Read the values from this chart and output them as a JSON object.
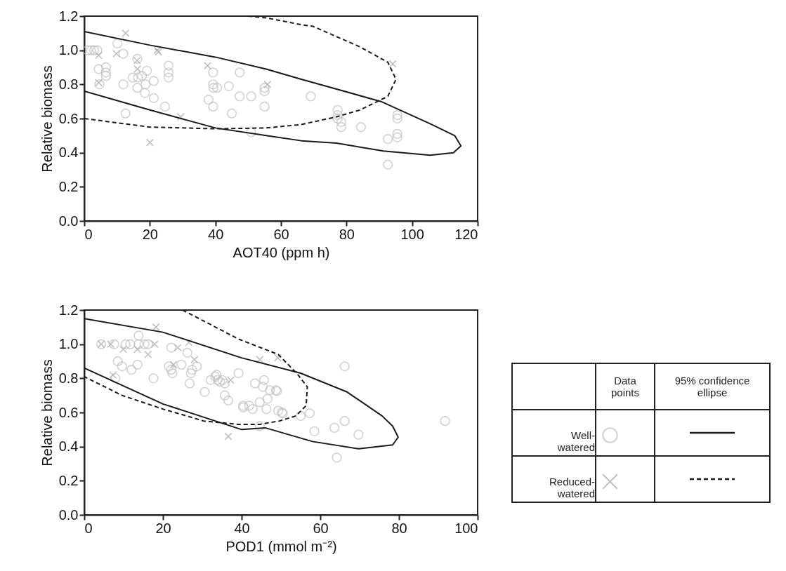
{
  "chart_data": [
    {
      "type": "scatter",
      "xlabel": "AOT40 (ppm h)",
      "ylabel": "Relative biomass",
      "xlim": [
        0,
        120
      ],
      "xticks": [
        0,
        20,
        40,
        60,
        80,
        100,
        120
      ],
      "ylim": [
        0,
        1.2
      ],
      "yticks": [
        {
          "value": 0,
          "label": "0.0"
        },
        0.2,
        0.4,
        0.6,
        0.8,
        {
          "value": 1,
          "label": "1.0"
        },
        {
          "value": 1.2,
          "label": "1.2"
        }
      ],
      "series": [
        {
          "type": "scatter",
          "marker": "circle",
          "color": "#c0c0c0",
          "x": [
            1,
            2,
            3,
            4,
            10.1,
            11.9,
            4.4,
            4.6,
            6.6,
            6.6,
            6.6,
            11.9,
            12.6,
            14.8,
            16.2,
            16.4,
            16.2,
            17.6,
            19.1,
            18.7,
            18.5,
            21.2,
            21.2,
            24.6,
            25.7,
            25.7,
            25.7,
            39.3,
            39.3,
            39.4,
            40.5,
            37.9,
            39.3,
            44.1,
            45,
            47.4,
            47.4,
            50.9,
            50.9,
            55,
            55,
            55,
            69.1,
            77.3,
            77.3,
            77.3,
            78.4,
            78.4,
            84.4,
            92.6,
            92.6,
            95.5,
            95.5,
            95.5,
            95.5
          ],
          "values": [
            1,
            1,
            1,
            1,
            1.04,
            0.98,
            0.89,
            0.8,
            0.9,
            0.87,
            0.85,
            0.8,
            0.63,
            0.84,
            0.95,
            0.84,
            0.78,
            0.85,
            0.88,
            0.8,
            0.75,
            0.82,
            0.72,
            0.67,
            0.91,
            0.87,
            0.84,
            0.87,
            0.8,
            0.78,
            0.78,
            0.71,
            0.67,
            0.79,
            0.63,
            0.87,
            0.73,
            0.73,
            0.52,
            0.78,
            0.76,
            0.67,
            0.73,
            0.65,
            0.62,
            0.6,
            0.58,
            0.55,
            0.55,
            0.48,
            0.33,
            0.62,
            0.6,
            0.51,
            0.49
          ]
        },
        {
          "type": "scatter",
          "marker": "cross",
          "color": "#a6a6a6",
          "x": [
            12.6,
            4.4,
            9.8,
            22.3,
            22.6,
            16.1,
            16.2,
            4.4,
            37.6,
            29.4,
            20,
            55.9,
            94.1
          ],
          "values": [
            1.1,
            0.97,
            0.98,
            1,
            0.99,
            0.94,
            0.89,
            0.81,
            0.91,
            0.61,
            0.46,
            0.8,
            0.92
          ]
        },
        {
          "type": "line",
          "line_style": "solid",
          "color": "#1a1a1a",
          "x": [
            0,
            20,
            40,
            55.5,
            66.2,
            90.5,
            105.5,
            113,
            114.9,
            112.6,
            105.5,
            91.2,
            76.9,
            66.2,
            55.5,
            40,
            20,
            0
          ],
          "values": [
            1.11,
            1.03,
            0.96,
            0.89,
            0.83,
            0.7,
            0.57,
            0.5,
            0.44,
            0.4,
            0.385,
            0.41,
            0.456,
            0.47,
            0.5,
            0.545,
            0.65,
            0.76
          ]
        },
        {
          "type": "line",
          "line_style": "dashed",
          "color": "#1a1a1a",
          "x": [
            50,
            55.5,
            66.2,
            69.8,
            84.1,
            92.6,
            95.1,
            92.6,
            84.1,
            76.9,
            66.2,
            55.5,
            40,
            20,
            0
          ],
          "values": [
            1.2,
            1.19,
            1.15,
            1.14,
            1.02,
            0.93,
            0.83,
            0.73,
            0.65,
            0.61,
            0.565,
            0.545,
            0.54,
            0.55,
            0.6
          ]
        }
      ]
    },
    {
      "type": "scatter",
      "xlabel": "POD1 (mmol m⁻²)",
      "ylabel": "Relative biomass",
      "xlim": [
        0,
        100
      ],
      "xticks": [
        0,
        20,
        40,
        60,
        80,
        100
      ],
      "ylim": [
        0,
        1.2
      ],
      "yticks": [
        {
          "value": 0,
          "label": "0.0"
        },
        0.2,
        0.4,
        0.6,
        0.8,
        {
          "value": 1,
          "label": "1.0"
        },
        {
          "value": 1.2,
          "label": "1.2"
        }
      ],
      "legend": "right",
      "annotations": [
        "Data points",
        "95% confidence ellipse"
      ],
      "series": [
        {
          "name": "Well-watered",
          "type": "scatter",
          "marker": "circle",
          "color": "#c0c0c0",
          "x": [
            4.3,
            7.6,
            10.5,
            11.7,
            13.8,
            15.3,
            16.2,
            13.8,
            8.5,
            9.6,
            7.9,
            12,
            13.5,
            17.6,
            22.1,
            21.5,
            22.1,
            22.4,
            24.7,
            26.2,
            27.4,
            28.6,
            27.1,
            26.8,
            30.6,
            32.1,
            33.3,
            33.9,
            34.5,
            35.1,
            35.7,
            33.6,
            35.7,
            36.6,
            39.2,
            40.4,
            40.4,
            41.9,
            42.8,
            43.4,
            44.6,
            44.6,
            45.7,
            45.4,
            46.3,
            46.6,
            47.2,
            48.7,
            49.3,
            50.2,
            49,
            50.5,
            55,
            57.3,
            66.2,
            58.5,
            63.6,
            66.2,
            69.7,
            64.2,
            91.7
          ],
          "values": [
            1,
            1,
            1,
            1,
            1,
            1,
            1,
            1.05,
            0.9,
            0.87,
            0.8,
            0.85,
            0.88,
            0.8,
            0.98,
            0.87,
            0.85,
            0.83,
            0.88,
            0.95,
            0.85,
            0.87,
            0.83,
            0.77,
            0.72,
            0.79,
            0.81,
            0.79,
            0.78,
            0.79,
            0.77,
            0.82,
            0.7,
            0.67,
            0.83,
            0.64,
            0.63,
            0.64,
            0.62,
            0.77,
            0.52,
            0.66,
            0.79,
            0.75,
            0.62,
            0.68,
            0.73,
            0.73,
            0.61,
            0.6,
            0.725,
            0.595,
            0.58,
            0.595,
            0.87,
            0.49,
            0.51,
            0.55,
            0.47,
            0.335,
            0.55
          ]
        },
        {
          "name": "Reduced-watered",
          "type": "scatter",
          "marker": "cross",
          "color": "#a6a6a6",
          "x": [
            4.3,
            6.7,
            9.9,
            13.5,
            17.9,
            18.2,
            16.2,
            23.8,
            26.6,
            28,
            22.7,
            37.2,
            36.6,
            7.3,
            44.6,
            49.2
          ],
          "values": [
            1,
            1,
            0.97,
            0.97,
            1,
            1.1,
            0.94,
            0.98,
            1.01,
            0.91,
            0.88,
            0.79,
            0.46,
            0.82,
            0.91,
            0.92
          ]
        },
        {
          "type": "line",
          "line_style": "solid",
          "color": "#1a1a1a",
          "x": [
            0,
            20,
            40,
            55,
            66.8,
            75.7,
            78.4,
            79.8,
            78.4,
            69.8,
            58,
            46,
            40,
            20,
            0
          ],
          "values": [
            1.15,
            1.07,
            0.92,
            0.83,
            0.72,
            0.58,
            0.52,
            0.455,
            0.41,
            0.387,
            0.43,
            0.51,
            0.5,
            0.65,
            0.86
          ]
        },
        {
          "type": "line",
          "line_style": "dashed",
          "color": "#1a1a1a",
          "x": [
            25,
            39.2,
            49.3,
            54,
            56.7,
            56.4,
            53.8,
            49.6,
            44.6,
            39.2,
            30.4,
            20,
            9.6,
            0
          ],
          "values": [
            1.2,
            1.03,
            0.94,
            0.83,
            0.75,
            0.64,
            0.58,
            0.55,
            0.53,
            0.53,
            0.55,
            0.62,
            0.7,
            0.81
          ]
        }
      ]
    }
  ]
}
